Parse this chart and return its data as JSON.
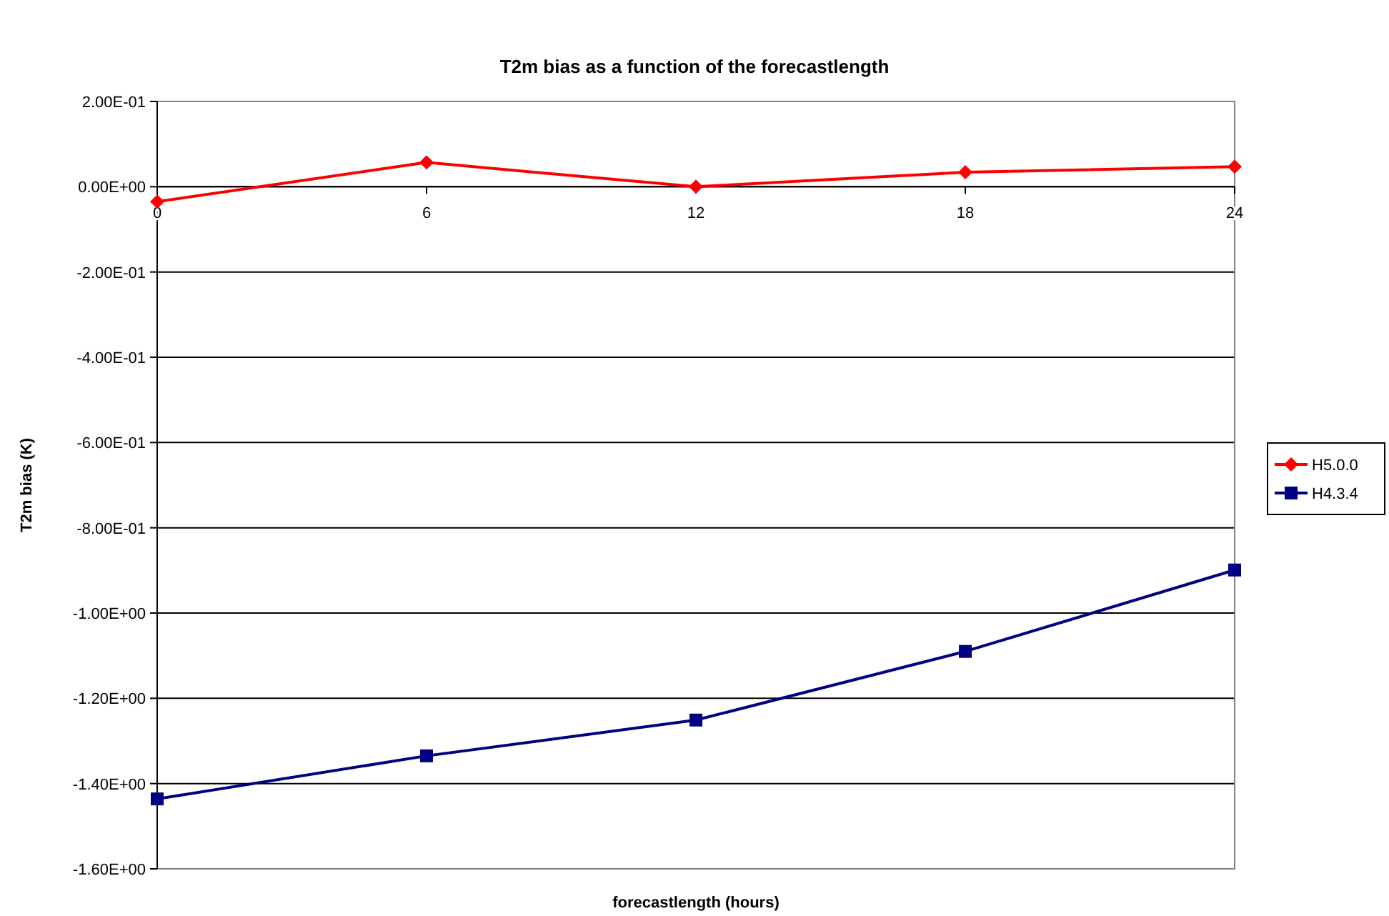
{
  "chart_data": {
    "type": "line",
    "title": "T2m bias as a function of the forecastlength",
    "xlabel": "forecastlength (hours)",
    "ylabel": "T2m bias (K)",
    "x": [
      0,
      6,
      12,
      18,
      24
    ],
    "xlim": [
      0,
      24
    ],
    "xticks": [
      0,
      6,
      12,
      18,
      24
    ],
    "ylim": [
      -1.6,
      0.2
    ],
    "yticks": [
      {
        "value": -1.6,
        "label": "-1.60E+00"
      },
      {
        "value": -1.4,
        "label": "-1.40E+00"
      },
      {
        "value": -1.2,
        "label": "-1.20E+00"
      },
      {
        "value": -1,
        "label": "-1.00E+00"
      },
      {
        "value": -0.8,
        "label": "-8.00E-01"
      },
      {
        "value": -0.6,
        "label": "-6.00E-01"
      },
      {
        "value": -0.4,
        "label": "-4.00E-01"
      },
      {
        "value": -0.2,
        "label": "-2.00E-01"
      },
      {
        "value": 0,
        "label": "0.00E+00"
      },
      {
        "value": 0.2,
        "label": "2.00E-01"
      }
    ],
    "grid": "y",
    "legend": "right",
    "series": [
      {
        "name": "H5.0.0",
        "color": "#ff0000",
        "marker": "diamond",
        "values": [
          -0.035,
          0.057,
          0,
          0.034,
          0.047
        ]
      },
      {
        "name": "H4.3.4",
        "color": "#000080",
        "marker": "square",
        "values": [
          -1.436,
          -1.335,
          -1.251,
          -1.09,
          -0.899
        ]
      }
    ]
  }
}
